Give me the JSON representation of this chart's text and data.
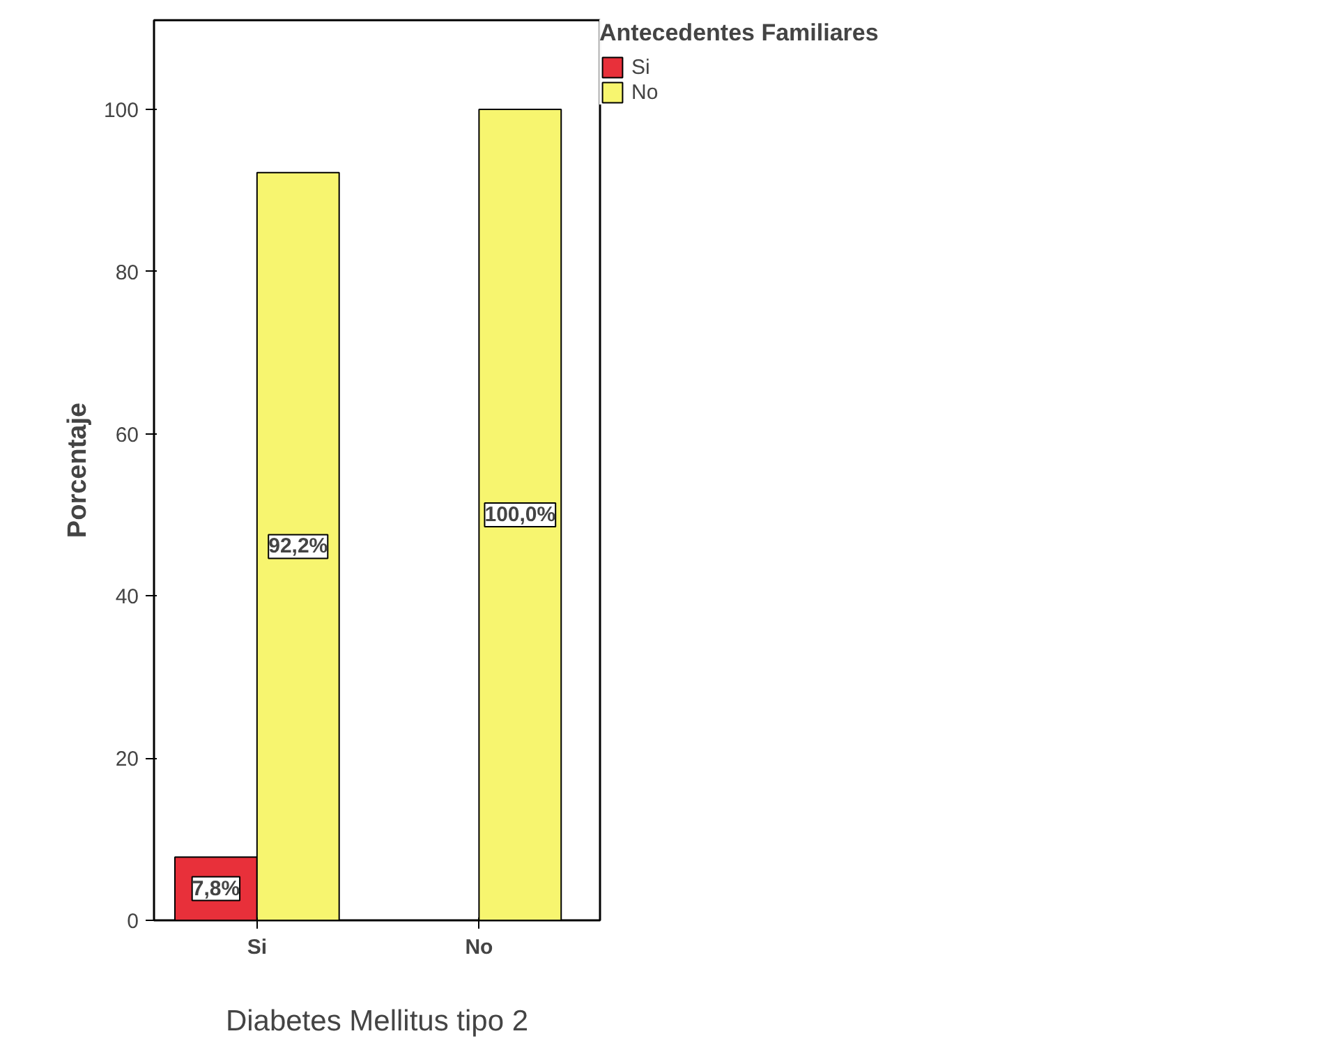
{
  "chart_data": {
    "type": "bar",
    "xlabel": "Diabetes Mellitus tipo 2",
    "ylabel": "Porcentaje",
    "legend_title": "Antecedentes Familiares",
    "categories": [
      "Si",
      "No"
    ],
    "series": [
      {
        "name": "Si",
        "color": "#e8303a",
        "values": [
          7.8,
          null
        ],
        "value_labels": [
          "7,8%",
          null
        ]
      },
      {
        "name": "No",
        "color": "#f7f56f",
        "values": [
          92.2,
          100.0
        ],
        "value_labels": [
          "92,2%",
          "100,0%"
        ]
      }
    ],
    "ylim": [
      0,
      111
    ],
    "yticks": [
      0,
      20,
      40,
      60,
      80,
      100
    ],
    "grid": false,
    "legend": "top right"
  }
}
